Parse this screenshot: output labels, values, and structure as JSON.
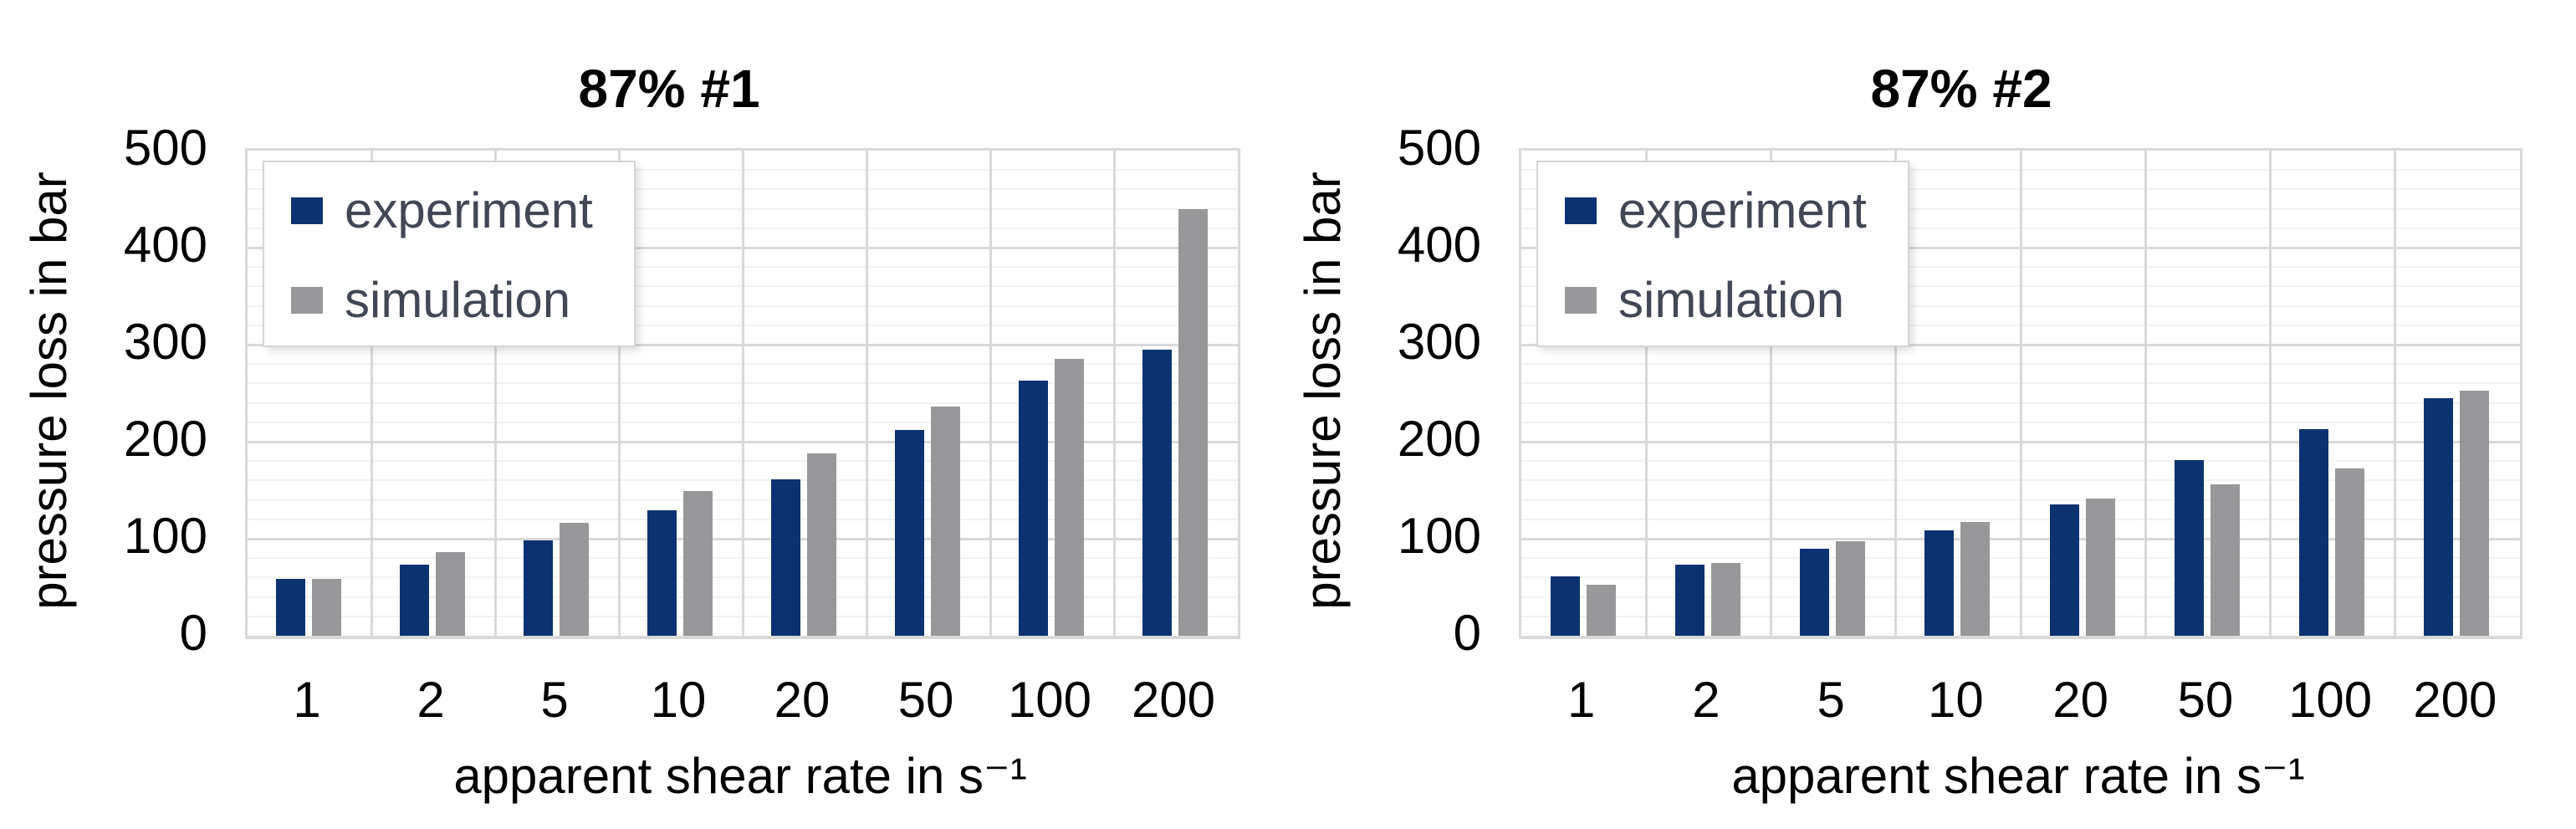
{
  "colors": {
    "experiment": "#0d3271",
    "simulation": "#98989a",
    "grid_major": "#d9d9d9",
    "grid_minor": "#f2f2f2",
    "legend_text": "#424756",
    "axis_text": "#000000"
  },
  "chart_data": [
    {
      "type": "bar",
      "title": "87% #1",
      "xlabel": "apparent shear rate in s⁻¹",
      "ylabel": "pressure loss in bar",
      "categories": [
        "1",
        "2",
        "5",
        "10",
        "20",
        "50",
        "100",
        "200"
      ],
      "series": [
        {
          "name": "experiment",
          "color": "#0d3271",
          "values": [
            59,
            73,
            98,
            129,
            161,
            212,
            263,
            295
          ]
        },
        {
          "name": "simulation",
          "color": "#98989a",
          "values": [
            59,
            86,
            116,
            149,
            188,
            236,
            285,
            440
          ]
        }
      ],
      "ylim": [
        0,
        500
      ],
      "yticks": [
        0,
        100,
        200,
        300,
        400,
        500
      ],
      "grid": {
        "major_step": 100,
        "minor_step": 20,
        "vertical_group_lines": true
      },
      "legend_position": "upper-left-inside"
    },
    {
      "type": "bar",
      "title": "87% #2",
      "xlabel": "apparent shear rate in s⁻¹",
      "ylabel": "pressure loss in bar",
      "categories": [
        "1",
        "2",
        "5",
        "10",
        "20",
        "50",
        "100",
        "200"
      ],
      "series": [
        {
          "name": "experiment",
          "color": "#0d3271",
          "values": [
            61,
            73,
            90,
            109,
            135,
            181,
            213,
            245
          ]
        },
        {
          "name": "simulation",
          "color": "#98989a",
          "values": [
            53,
            75,
            97,
            117,
            141,
            156,
            172,
            253
          ]
        }
      ],
      "ylim": [
        0,
        500
      ],
      "yticks": [
        0,
        100,
        200,
        300,
        400,
        500
      ],
      "grid": {
        "major_step": 100,
        "minor_step": 20,
        "vertical_group_lines": true
      },
      "legend_position": "upper-left-inside"
    }
  ]
}
